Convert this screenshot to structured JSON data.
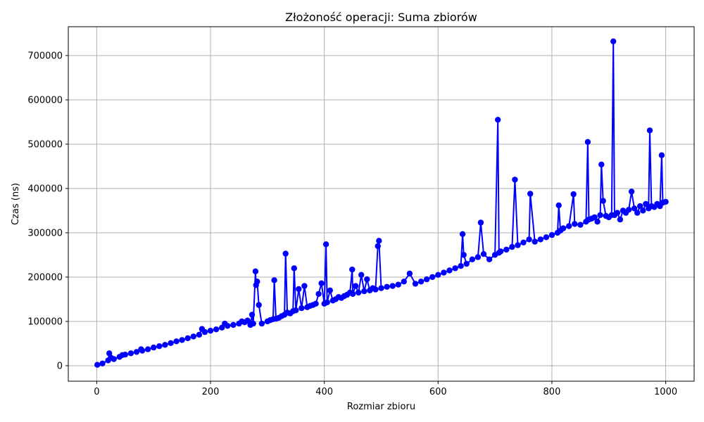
{
  "chart_data": {
    "type": "line",
    "title": "Złożoność operacji: Suma zbiorów",
    "xlabel": "Rozmiar zbioru",
    "ylabel": "Czas (ns)",
    "xlim": [
      -50,
      1050
    ],
    "ylim": [
      -35000,
      765000
    ],
    "xticks": [
      0,
      200,
      400,
      600,
      800,
      1000
    ],
    "xtick_labels": [
      "0",
      "200",
      "400",
      "600",
      "800",
      "1000"
    ],
    "yticks": [
      0,
      100000,
      200000,
      300000,
      400000,
      500000,
      600000,
      700000
    ],
    "ytick_labels": [
      "0",
      "100000",
      "200000",
      "300000",
      "400000",
      "500000",
      "600000",
      "700000"
    ],
    "grid": true,
    "legend": "none",
    "series": [
      {
        "color": "#0000ff",
        "marker": "circle",
        "x": [
          1,
          10,
          20,
          22,
          25,
          30,
          40,
          45,
          50,
          60,
          70,
          78,
          80,
          90,
          100,
          110,
          120,
          130,
          140,
          150,
          160,
          170,
          180,
          185,
          190,
          200,
          210,
          220,
          225,
          230,
          240,
          250,
          255,
          260,
          265,
          270,
          273,
          275,
          279,
          280,
          282,
          285,
          290,
          300,
          305,
          310,
          312,
          315,
          320,
          325,
          330,
          332,
          335,
          340,
          345,
          347,
          350,
          355,
          360,
          365,
          370,
          375,
          380,
          385,
          390,
          395,
          400,
          403,
          405,
          410,
          415,
          420,
          425,
          430,
          435,
          440,
          445,
          449,
          450,
          455,
          460,
          465,
          470,
          475,
          480,
          485,
          490,
          494,
          496,
          500,
          510,
          520,
          530,
          540,
          550,
          560,
          570,
          580,
          590,
          600,
          610,
          620,
          630,
          640,
          643,
          645,
          650,
          660,
          670,
          675,
          680,
          690,
          700,
          705,
          707,
          710,
          720,
          730,
          735,
          740,
          750,
          760,
          762,
          770,
          780,
          790,
          800,
          810,
          812,
          815,
          820,
          830,
          838,
          840,
          850,
          860,
          863,
          865,
          870,
          875,
          880,
          885,
          887,
          890,
          895,
          900,
          905,
          908,
          910,
          915,
          920,
          925,
          930,
          935,
          940,
          945,
          950,
          955,
          960,
          965,
          970,
          972,
          975,
          980,
          985,
          990,
          993,
          995,
          1000
        ],
        "y": [
          2000,
          5000,
          12000,
          28000,
          18000,
          15000,
          20000,
          24000,
          25000,
          28000,
          31000,
          37000,
          34000,
          37000,
          41000,
          44000,
          47000,
          51000,
          55000,
          58000,
          62000,
          66000,
          70000,
          83000,
          76000,
          79000,
          82000,
          86000,
          95000,
          90000,
          92000,
          95000,
          100000,
          98000,
          102000,
          92000,
          115000,
          95000,
          213000,
          182000,
          190000,
          137000,
          95000,
          100000,
          103000,
          105000,
          193000,
          106000,
          108000,
          112000,
          115000,
          253000,
          120000,
          118000,
          123000,
          220000,
          125000,
          173000,
          130000,
          180000,
          132000,
          135000,
          137000,
          140000,
          162000,
          186000,
          140000,
          274000,
          143000,
          170000,
          147000,
          150000,
          155000,
          153000,
          157000,
          160000,
          165000,
          217000,
          162000,
          180000,
          165000,
          205000,
          168000,
          195000,
          170000,
          175000,
          172000,
          270000,
          282000,
          175000,
          178000,
          180000,
          183000,
          190000,
          208000,
          185000,
          190000,
          195000,
          200000,
          205000,
          210000,
          215000,
          220000,
          225000,
          297000,
          250000,
          230000,
          240000,
          245000,
          323000,
          252000,
          240000,
          250000,
          555000,
          255000,
          258000,
          262000,
          268000,
          420000,
          272000,
          278000,
          285000,
          388000,
          280000,
          285000,
          290000,
          295000,
          300000,
          362000,
          305000,
          310000,
          315000,
          387000,
          320000,
          318000,
          325000,
          505000,
          330000,
          332000,
          335000,
          325000,
          340000,
          454000,
          372000,
          338000,
          335000,
          340000,
          732000,
          340000,
          345000,
          330000,
          350000,
          345000,
          352000,
          393000,
          355000,
          345000,
          360000,
          350000,
          365000,
          355000,
          531000,
          360000,
          358000,
          365000,
          360000,
          475000,
          368000,
          370000
        ]
      }
    ]
  }
}
